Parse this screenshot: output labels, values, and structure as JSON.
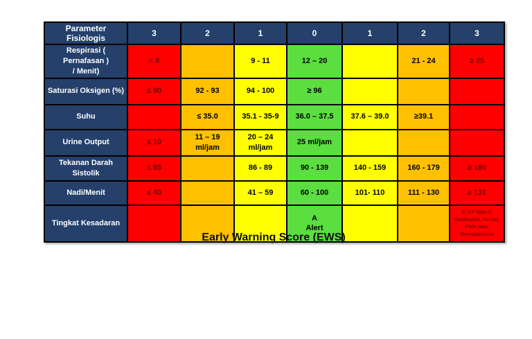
{
  "caption": "Early Warning Score (EWS)",
  "colors": {
    "header_navy": "#24406B",
    "red": "#FF0000",
    "orange": "#FFC000",
    "yellow": "#FFFF00",
    "green": "#5BDE3F",
    "red_cell_text": "#7C0000"
  },
  "table": {
    "header": {
      "label": "Parameter Fisiologis",
      "scores": [
        "3",
        "2",
        "1",
        "0",
        "1",
        "2",
        "3"
      ]
    },
    "rows": [
      {
        "label": "Respirasi ( Pernafasan )\n/ Menit)",
        "cells": [
          {
            "color": "red",
            "text": "< 8"
          },
          {
            "color": "orange",
            "text": ""
          },
          {
            "color": "yellow",
            "text": "9 - 11"
          },
          {
            "color": "green",
            "text": "12 – 20"
          },
          {
            "color": "yellow",
            "text": ""
          },
          {
            "color": "orange",
            "text": "21 - 24"
          },
          {
            "color": "red",
            "text": "≥ 25"
          }
        ]
      },
      {
        "label": "Saturasi Oksigen (%)",
        "cells": [
          {
            "color": "red",
            "text": "≤ 90"
          },
          {
            "color": "orange",
            "text": "92 - 93"
          },
          {
            "color": "yellow",
            "text": "94 - 100"
          },
          {
            "color": "green",
            "text": "≥ 96"
          },
          {
            "color": "yellow",
            "text": ""
          },
          {
            "color": "orange",
            "text": ""
          },
          {
            "color": "red",
            "text": ""
          }
        ]
      },
      {
        "label": "Suhu",
        "cells": [
          {
            "color": "red",
            "text": ""
          },
          {
            "color": "orange",
            "text": "≤ 35.0"
          },
          {
            "color": "yellow",
            "text": "35.1 - 35-9"
          },
          {
            "color": "green",
            "text": "36.0 – 37.5"
          },
          {
            "color": "yellow",
            "text": "37.6 – 39.0"
          },
          {
            "color": "orange",
            "text": "≥39.1"
          },
          {
            "color": "red",
            "text": ""
          }
        ]
      },
      {
        "label": "Urine Output",
        "cells": [
          {
            "color": "red",
            "text": "≤ 10"
          },
          {
            "color": "orange",
            "text": "11 – 19\nml/jam"
          },
          {
            "color": "yellow",
            "text": "20 – 24\nml/jam"
          },
          {
            "color": "green",
            "text": "25 ml/jam"
          },
          {
            "color": "yellow",
            "text": ""
          },
          {
            "color": "orange",
            "text": ""
          },
          {
            "color": "red",
            "text": ""
          }
        ]
      },
      {
        "label": "Tekanan Darah Sistolik",
        "cells": [
          {
            "color": "red",
            "text": "≤ 85"
          },
          {
            "color": "orange",
            "text": ""
          },
          {
            "color": "yellow",
            "text": "86 - 89"
          },
          {
            "color": "green",
            "text": "90 - 139"
          },
          {
            "color": "yellow",
            "text": "140 - 159"
          },
          {
            "color": "orange",
            "text": "160 - 179"
          },
          {
            "color": "red",
            "text": "≥ 180"
          }
        ]
      },
      {
        "label": "Nadi/Menit",
        "cells": [
          {
            "color": "red",
            "text": "≤ 40"
          },
          {
            "color": "orange",
            "text": ""
          },
          {
            "color": "yellow",
            "text": "41 – 59"
          },
          {
            "color": "green",
            "text": "60 - 100"
          },
          {
            "color": "yellow",
            "text": "101- 110"
          },
          {
            "color": "orange",
            "text": "111 - 130"
          },
          {
            "color": "red",
            "text": "≥ 131"
          }
        ]
      },
      {
        "label": "Tingkat Kesadaran",
        "cells": [
          {
            "color": "red",
            "text": ""
          },
          {
            "color": "orange",
            "text": ""
          },
          {
            "color": "yellow",
            "text": ""
          },
          {
            "color": "green",
            "text": "A\nAlert"
          },
          {
            "color": "yellow",
            "text": ""
          },
          {
            "color": "orange",
            "text": ""
          },
          {
            "color": "red",
            "text": "C.V.P atau U\nConfusion, Verbal,\nPain atau\nUnresponsive"
          }
        ]
      }
    ]
  }
}
